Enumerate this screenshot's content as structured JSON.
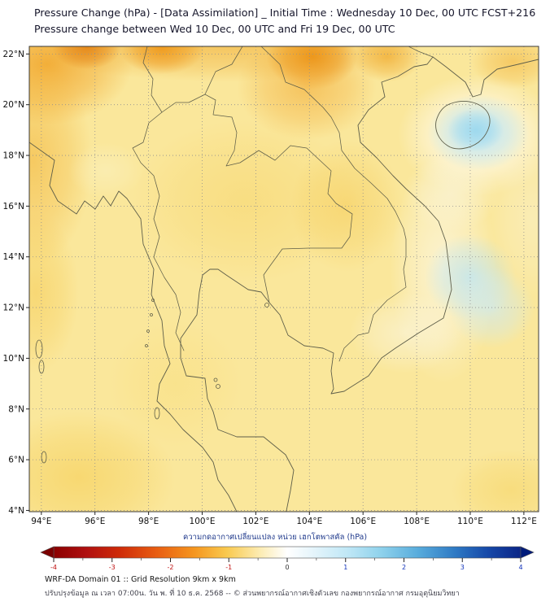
{
  "header": {
    "title_line1": "Pressure Change (hPa) - [Data Assimilation] _ Initial Time : Wednesday 10 Dec, 00 UTC FCST+216",
    "title_line2": "Pressure change between Wed 10 Dec, 00 UTC and Fri 19 Dec, 00 UTC"
  },
  "chart_data": {
    "type": "heatmap",
    "title": "Pressure Change (hPa) - [Data Assimilation]",
    "initial_time": "Wednesday 10 Dec, 00 UTC",
    "forecast_hour": "FCST+216",
    "period": "Wed 10 Dec, 00 UTC to Fri 19 Dec, 00 UTC",
    "grid": true,
    "x_axis": {
      "range": [
        93.55,
        112.55
      ],
      "ticks": [
        {
          "v": 94,
          "label": "94°E"
        },
        {
          "v": 96,
          "label": "96°E"
        },
        {
          "v": 98,
          "label": "98°E"
        },
        {
          "v": 100,
          "label": "100°E"
        },
        {
          "v": 102,
          "label": "102°E"
        },
        {
          "v": 104,
          "label": "104°E"
        },
        {
          "v": 106,
          "label": "106°E"
        },
        {
          "v": 108,
          "label": "108°E"
        },
        {
          "v": 110,
          "label": "110°E"
        },
        {
          "v": 112,
          "label": "112°E"
        }
      ]
    },
    "y_axis": {
      "range": [
        3.95,
        22.3
      ],
      "ticks": [
        {
          "v": 4,
          "label": "4°N"
        },
        {
          "v": 6,
          "label": "6°N"
        },
        {
          "v": 8,
          "label": "8°N"
        },
        {
          "v": 10,
          "label": "10°N"
        },
        {
          "v": 12,
          "label": "12°N"
        },
        {
          "v": 14,
          "label": "14°N"
        },
        {
          "v": 16,
          "label": "16°N"
        },
        {
          "v": 18,
          "label": "18°N"
        },
        {
          "v": 20,
          "label": "20°N"
        },
        {
          "v": 22,
          "label": "22°N"
        }
      ]
    },
    "base_color": "#FAE79B",
    "base_value_hpa": -1.0,
    "field_blobs": [
      {
        "lon": 94.2,
        "lat": 21.6,
        "rx_deg": 3.2,
        "ry_deg": 2.4,
        "color": "#F1A428",
        "opacity": 0.85,
        "value_hpa": -2.2
      },
      {
        "lon": 95.7,
        "lat": 22.3,
        "rx_deg": 1.3,
        "ry_deg": 0.9,
        "color": "#E17B10",
        "opacity": 0.9,
        "value_hpa": -3.2
      },
      {
        "lon": 98.5,
        "lat": 22.25,
        "rx_deg": 1.6,
        "ry_deg": 1.05,
        "color": "#EE9013",
        "opacity": 0.9,
        "value_hpa": -2.8
      },
      {
        "lon": 104.1,
        "lat": 21.9,
        "rx_deg": 1.7,
        "ry_deg": 1.3,
        "color": "#E8880E",
        "opacity": 0.95,
        "value_hpa": -3.2
      },
      {
        "lon": 103.9,
        "lat": 20.7,
        "rx_deg": 2.6,
        "ry_deg": 2.1,
        "color": "#F2A62C",
        "opacity": 0.55,
        "value_hpa": -2.0
      },
      {
        "lon": 100.8,
        "lat": 22.4,
        "rx_deg": 7.5,
        "ry_deg": 1.5,
        "color": "#EFA01E",
        "opacity": 0.5,
        "value_hpa": -2.2
      },
      {
        "lon": 93.7,
        "lat": 17.8,
        "rx_deg": 2.2,
        "ry_deg": 4.2,
        "color": "#F3B63B",
        "opacity": 0.6,
        "value_hpa": -1.8
      },
      {
        "lon": 93.8,
        "lat": 12.6,
        "rx_deg": 1.6,
        "ry_deg": 3.2,
        "color": "#F6C94F",
        "opacity": 0.5,
        "value_hpa": -1.5
      },
      {
        "lon": 101.6,
        "lat": 16.2,
        "rx_deg": 4.2,
        "ry_deg": 3.2,
        "color": "#F6CF5C",
        "opacity": 0.4,
        "value_hpa": -1.3
      },
      {
        "lon": 105.4,
        "lat": 16.0,
        "rx_deg": 2.1,
        "ry_deg": 2.6,
        "color": "#F4C64A",
        "opacity": 0.45,
        "value_hpa": -1.5
      },
      {
        "lon": 95.4,
        "lat": 5.3,
        "rx_deg": 3.6,
        "ry_deg": 2.6,
        "color": "#F5C948",
        "opacity": 0.5,
        "value_hpa": -1.5
      },
      {
        "lon": 106.9,
        "lat": 21.9,
        "rx_deg": 1.3,
        "ry_deg": 1.0,
        "color": "#EFA21F",
        "opacity": 0.65,
        "value_hpa": -2.2
      },
      {
        "lon": 111.6,
        "lat": 21.7,
        "rx_deg": 1.6,
        "ry_deg": 1.1,
        "color": "#F2B136",
        "opacity": 0.55,
        "value_hpa": -1.8
      },
      {
        "lon": 110.3,
        "lat": 18.8,
        "rx_deg": 3.0,
        "ry_deg": 2.4,
        "color": "#FFFFFF",
        "opacity": 0.85,
        "value_hpa": 0.0
      },
      {
        "lon": 110.3,
        "lat": 18.9,
        "rx_deg": 1.9,
        "ry_deg": 1.5,
        "color": "#B5E2F1",
        "opacity": 0.9,
        "value_hpa": 0.8
      },
      {
        "lon": 110.2,
        "lat": 19.0,
        "rx_deg": 1.05,
        "ry_deg": 0.85,
        "color": "#9BD8EE",
        "opacity": 0.9,
        "value_hpa": 1.2
      },
      {
        "lon": 109.0,
        "lat": 13.5,
        "rx_deg": 2.0,
        "ry_deg": 4.5,
        "color": "#FCF8E8",
        "opacity": 0.7,
        "value_hpa": -0.2
      },
      {
        "lon": 109.3,
        "lat": 16.5,
        "rx_deg": 1.8,
        "ry_deg": 1.5,
        "color": "#FAF4D8",
        "opacity": 0.6,
        "value_hpa": -0.5
      },
      {
        "lon": 110.0,
        "lat": 13.2,
        "rx_deg": 1.7,
        "ry_deg": 1.7,
        "color": "#BFE5F1",
        "opacity": 0.8,
        "value_hpa": 0.6
      },
      {
        "lon": 110.8,
        "lat": 12.0,
        "rx_deg": 1.6,
        "ry_deg": 1.6,
        "color": "#CDEAF3",
        "opacity": 0.7,
        "value_hpa": 0.5
      },
      {
        "lon": 107.6,
        "lat": 11.0,
        "rx_deg": 2.1,
        "ry_deg": 1.6,
        "color": "#FBF5DF",
        "opacity": 0.6,
        "value_hpa": -0.3
      },
      {
        "lon": 112.3,
        "lat": 15.5,
        "rx_deg": 1.6,
        "ry_deg": 3.1,
        "color": "#FAF0C8",
        "opacity": 0.55,
        "value_hpa": -0.7
      },
      {
        "lon": 96.4,
        "lat": 17.4,
        "rx_deg": 1.4,
        "ry_deg": 1.1,
        "color": "#FBF2C4",
        "opacity": 0.5,
        "value_hpa": -0.8
      },
      {
        "lon": 99.0,
        "lat": 9.0,
        "rx_deg": 2.5,
        "ry_deg": 2.5,
        "color": "#F8DC78",
        "opacity": 0.4,
        "value_hpa": -1.2
      },
      {
        "lon": 111.5,
        "lat": 4.8,
        "rx_deg": 2.2,
        "ry_deg": 1.6,
        "color": "#F6D260",
        "opacity": 0.5,
        "value_hpa": -1.3
      }
    ],
    "colorbar": {
      "label": "ความกดอากาศเปลี่ยนแปลง หน่วย เฮกโตพาสคัล (hPa)",
      "unit": "hPa",
      "min": -4,
      "max": 4,
      "major_ticks": [
        -4,
        -3,
        -2,
        -1,
        0,
        1,
        2,
        3,
        4
      ],
      "minor_step": 0.5,
      "negative_label_color": "#C01010",
      "positive_label_color": "#1133BB",
      "zero_label_color": "#333333",
      "left_arrow_color": "#7A0000",
      "right_arrow_color": "#001B7A",
      "stops": [
        {
          "pos": 0.0,
          "color": "#8B0000"
        },
        {
          "pos": 0.07,
          "color": "#B01010"
        },
        {
          "pos": 0.14,
          "color": "#CE2A08"
        },
        {
          "pos": 0.22,
          "color": "#E85D12"
        },
        {
          "pos": 0.3,
          "color": "#F5951E"
        },
        {
          "pos": 0.37,
          "color": "#F9C94E"
        },
        {
          "pos": 0.44,
          "color": "#FCEBB0"
        },
        {
          "pos": 0.5,
          "color": "#FFFFFF"
        },
        {
          "pos": 0.56,
          "color": "#E3F4FB"
        },
        {
          "pos": 0.63,
          "color": "#BFE7F6"
        },
        {
          "pos": 0.7,
          "color": "#8FD2EC"
        },
        {
          "pos": 0.78,
          "color": "#58ACDC"
        },
        {
          "pos": 0.86,
          "color": "#2E79C4"
        },
        {
          "pos": 0.93,
          "color": "#1648A8"
        },
        {
          "pos": 1.0,
          "color": "#0A2587"
        }
      ]
    }
  },
  "footer": {
    "line1": "WRF-DA Domain 01 :: Grid Resolution 9km x 9km",
    "line2": "ปรับปรุงข้อมูล ณ เวลา 07:00น. วัน พ. ที่ 10 ธ.ค. 2568 -- © ส่วนพยากรณ์อากาศเชิงตัวเลข กองพยากรณ์อากาศ กรมอุตุนิยมวิทยา"
  }
}
